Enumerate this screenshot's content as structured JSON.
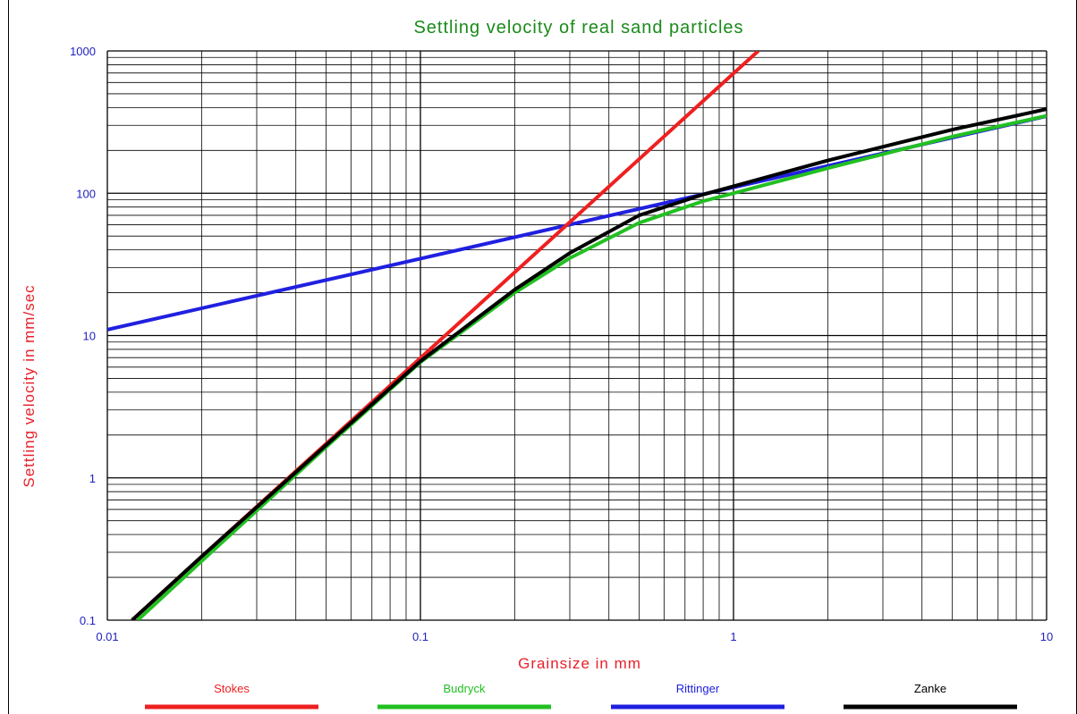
{
  "chart_data": {
    "type": "line",
    "title": "Settling velocity of real sand particles",
    "xlabel": "Grainsize in mm",
    "ylabel": "Settling velocity in mm/sec",
    "xscale": "log",
    "yscale": "log",
    "xlim": [
      0.01,
      10
    ],
    "ylim": [
      0.1,
      1000
    ],
    "x_ticks": [
      "0.01",
      "0.1",
      "1",
      "10"
    ],
    "y_ticks": [
      "0.1",
      "1",
      "10",
      "100",
      "1000"
    ],
    "grid": true,
    "legend_position": "bottom",
    "colors": {
      "title": "#1a8a1a",
      "xlabel": "#e8202a",
      "ylabel": "#e8202a",
      "ticks": "#2020c0"
    },
    "series": [
      {
        "name": "Stokes",
        "color": "#ee2020",
        "x": [
          0.012,
          0.02,
          0.05,
          0.1,
          0.2,
          0.3,
          0.5,
          0.8,
          1.0,
          1.2
        ],
        "y": [
          0.1,
          0.28,
          1.74,
          6.95,
          27.8,
          62.6,
          174,
          445,
          695,
          1000
        ]
      },
      {
        "name": "Budryck",
        "color": "#22c022",
        "x": [
          0.0125,
          0.02,
          0.05,
          0.1,
          0.15,
          0.2,
          0.3,
          0.5,
          0.8,
          1.0,
          2.0,
          5.0,
          10.0
        ],
        "y": [
          0.1,
          0.26,
          1.65,
          6.5,
          12.5,
          20,
          35,
          62,
          88,
          100,
          150,
          250,
          350
        ]
      },
      {
        "name": "Rittinger",
        "color": "#2020e0",
        "x": [
          0.01,
          0.1,
          1.0,
          10.0
        ],
        "y": [
          11,
          34.7,
          110,
          348
        ]
      },
      {
        "name": "Zanke",
        "color": "#000000",
        "x": [
          0.012,
          0.02,
          0.05,
          0.1,
          0.15,
          0.2,
          0.3,
          0.5,
          0.8,
          1.0,
          2.0,
          5.0,
          10.0
        ],
        "y": [
          0.1,
          0.28,
          1.7,
          6.6,
          13,
          21,
          38,
          70,
          98,
          112,
          170,
          280,
          390
        ]
      }
    ]
  }
}
